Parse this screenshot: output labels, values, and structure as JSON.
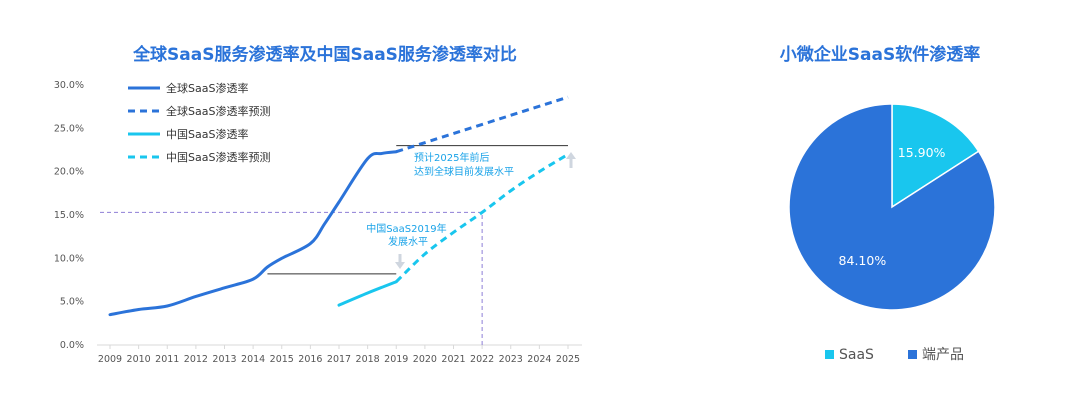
{
  "chart_data": [
    {
      "type": "line",
      "title": "全球SaaS服务渗透率及中国SaaS服务渗透率对比",
      "xlabel": "",
      "ylabel": "",
      "categories": [
        "2009",
        "2010",
        "2011",
        "2012",
        "2013",
        "2014",
        "2015",
        "2016",
        "2017",
        "2018",
        "2019",
        "2020",
        "2021",
        "2022",
        "2023",
        "2024",
        "2025"
      ],
      "y_ticks": [
        "0.0%",
        "5.0%",
        "10.0%",
        "15.0%",
        "20.0%",
        "25.0%",
        "30.0%"
      ],
      "ylim": [
        0,
        30
      ],
      "series": [
        {
          "name": "全球SaaS渗透率",
          "style": "solid",
          "color": "#2b73d9",
          "x": [
            2009,
            2010,
            2011,
            2012,
            2013,
            2014,
            2014.5,
            2015,
            2016,
            2016.5,
            2017,
            2018,
            2018.5,
            2019
          ],
          "y": [
            3.5,
            4.1,
            4.5,
            5.6,
            6.6,
            7.6,
            9.0,
            10.0,
            11.7,
            14.0,
            16.5,
            21.5,
            22.1,
            22.3
          ]
        },
        {
          "name": "全球SaaS渗透率预测",
          "style": "dashed",
          "color": "#2b73d9",
          "x": [
            2019,
            2025
          ],
          "y": [
            22.3,
            28.6
          ]
        },
        {
          "name": "中国SaaS渗透率",
          "style": "solid",
          "color": "#19c6ee",
          "x": [
            2017,
            2018,
            2019
          ],
          "y": [
            4.6,
            6.0,
            7.3
          ]
        },
        {
          "name": "中国SaaS渗透率预测",
          "style": "dashed",
          "color": "#19c6ee",
          "x": [
            2019,
            2020,
            2021,
            2022,
            2023,
            2024,
            2025
          ],
          "y": [
            7.3,
            10.5,
            13.0,
            15.3,
            17.8,
            20.0,
            22.0
          ]
        }
      ],
      "reference_lines": [
        {
          "orientation": "horizontal",
          "y": 8.2,
          "x_range": [
            2014.5,
            2019
          ],
          "color": "#333333"
        },
        {
          "orientation": "horizontal",
          "y": 23.0,
          "x_range": [
            2019,
            2025
          ],
          "color": "#333333"
        },
        {
          "orientation": "horizontal",
          "y": 15.3,
          "x_range": [
            2009,
            2022
          ],
          "color": "#8e7fd6",
          "dashed": true
        },
        {
          "orientation": "vertical",
          "x": 2022,
          "y_range": [
            0,
            15.3
          ],
          "color": "#8e7fd6",
          "dashed": true
        }
      ],
      "annotations": [
        {
          "lines": [
            "预计2025年前后",
            "达到全球目前发展水平"
          ],
          "color": "#1aa3e8"
        },
        {
          "lines": [
            "中国SaaS2019年",
            "发展水平"
          ],
          "color": "#1aa3e8"
        }
      ],
      "legend_position": "top-left",
      "grid": false
    },
    {
      "type": "pie",
      "title": "小微企业SaaS软件渗透率",
      "labels": [
        "SaaS",
        "端产品"
      ],
      "values": [
        15.9,
        84.1
      ],
      "value_labels": [
        "15.90%",
        "84.10%"
      ],
      "colors": [
        "#19c6ee",
        "#2b73d9"
      ],
      "legend_position": "bottom"
    }
  ]
}
